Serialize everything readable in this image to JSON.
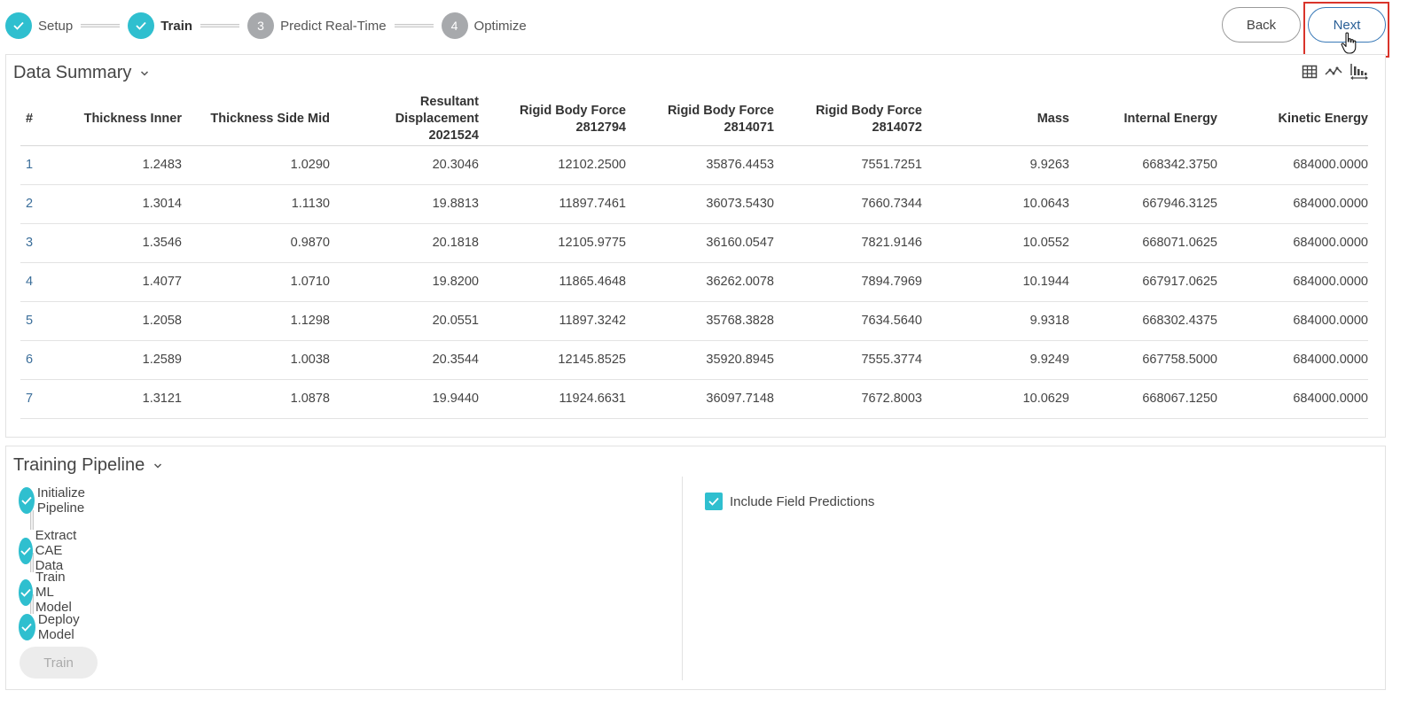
{
  "stepper": {
    "steps": [
      {
        "number": "1",
        "label": "Setup",
        "state": "done"
      },
      {
        "number": "2",
        "label": "Train",
        "state": "active"
      },
      {
        "number": "3",
        "label": "Predict Real-Time",
        "state": "todo"
      },
      {
        "number": "4",
        "label": "Optimize",
        "state": "todo"
      }
    ]
  },
  "nav": {
    "back_label": "Back",
    "next_label": "Next"
  },
  "data_summary": {
    "title": "Data Summary",
    "tools": [
      "table-view-icon",
      "line-chart-icon",
      "bar-chart-icon"
    ],
    "columns": [
      "#",
      "Thickness Inner",
      "Thickness Side Mid",
      "Resultant\nDisplacement\n2021524",
      "Rigid Body Force\n2812794",
      "Rigid Body Force\n2814071",
      "Rigid Body Force\n2814072",
      "Mass",
      "Internal Energy",
      "Kinetic Energy"
    ],
    "rows": [
      [
        "1",
        "1.2483",
        "1.0290",
        "20.3046",
        "12102.2500",
        "35876.4453",
        "7551.7251",
        "9.9263",
        "668342.3750",
        "684000.0000"
      ],
      [
        "2",
        "1.3014",
        "1.1130",
        "19.8813",
        "11897.7461",
        "36073.5430",
        "7660.7344",
        "10.0643",
        "667946.3125",
        "684000.0000"
      ],
      [
        "3",
        "1.3546",
        "0.9870",
        "20.1818",
        "12105.9775",
        "36160.0547",
        "7821.9146",
        "10.0552",
        "668071.0625",
        "684000.0000"
      ],
      [
        "4",
        "1.4077",
        "1.0710",
        "19.8200",
        "11865.4648",
        "36262.0078",
        "7894.7969",
        "10.1944",
        "667917.0625",
        "684000.0000"
      ],
      [
        "5",
        "1.2058",
        "1.1298",
        "20.0551",
        "11897.3242",
        "35768.3828",
        "7634.5640",
        "9.9318",
        "668302.4375",
        "684000.0000"
      ],
      [
        "6",
        "1.2589",
        "1.0038",
        "20.3544",
        "12145.8525",
        "35920.8945",
        "7555.3774",
        "9.9249",
        "667758.5000",
        "684000.0000"
      ],
      [
        "7",
        "1.3121",
        "1.0878",
        "19.9440",
        "11924.6631",
        "36097.7148",
        "7672.8003",
        "10.0629",
        "668067.1250",
        "684000.0000"
      ]
    ]
  },
  "pipeline": {
    "title": "Training Pipeline",
    "steps": [
      "Initialize Pipeline",
      "Extract CAE Data",
      "Train ML Model",
      "Deploy Model"
    ],
    "train_label": "Train",
    "include_field_predictions": {
      "label": "Include Field Predictions",
      "checked": true
    }
  },
  "colors": {
    "accent": "#2fbfcf",
    "inactive": "#a7a9ac",
    "highlight": "#d9342b",
    "link": "#3b6e9a"
  }
}
